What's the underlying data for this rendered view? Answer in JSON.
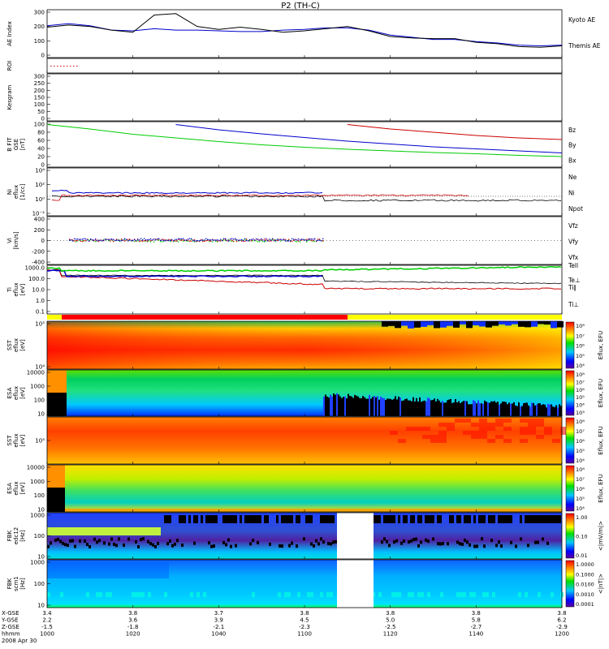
{
  "title": "P2 (TH-C)",
  "colors": {
    "blue": "#0000cc",
    "green": "#00cc00",
    "red": "#cc0000",
    "black": "#000000"
  },
  "footer": {
    "rows": [
      {
        "label": "X-GSE",
        "values": [
          "3.4",
          "3.8",
          "3.7",
          "3.8",
          "3.8",
          "3.8",
          "3.8"
        ]
      },
      {
        "label": "Y-GSE",
        "values": [
          "2.2",
          "3.6",
          "3.9",
          "4.5",
          "5.0",
          "5.8",
          "6.2"
        ]
      },
      {
        "label": "Z-GSE",
        "values": [
          "-1.5",
          "-1.8",
          "-2.1",
          "-2.3",
          "-2.5",
          "-2.7",
          "-2.9"
        ]
      },
      {
        "label": "hhmm",
        "values": [
          "1000",
          "1020",
          "1040",
          "1100",
          "1120",
          "1140",
          "1200"
        ]
      }
    ],
    "date": "2008 Apr 30"
  },
  "chart_data": [
    {
      "type": "line",
      "ylabel": "AE Index",
      "ylim": [
        0,
        300
      ],
      "yticks": [
        "300",
        "200",
        "100",
        "0"
      ],
      "x_hhmm": [
        1000,
        1005,
        1010,
        1015,
        1020,
        1025,
        1030,
        1035,
        1040,
        1045,
        1050,
        1055,
        1100,
        1105,
        1110,
        1115,
        1120,
        1125,
        1130,
        1135,
        1140,
        1145,
        1150,
        1155,
        1200
      ],
      "series": [
        {
          "name": "Kyoto AE",
          "color": "#0000cc",
          "values": [
            205,
            220,
            205,
            175,
            170,
            185,
            175,
            175,
            170,
            165,
            165,
            175,
            180,
            190,
            190,
            175,
            140,
            125,
            110,
            110,
            95,
            85,
            70,
            65,
            70
          ]
        },
        {
          "name": "Themis AE",
          "color": "#000000",
          "values": [
            195,
            210,
            200,
            175,
            160,
            280,
            290,
            200,
            180,
            195,
            180,
            160,
            170,
            185,
            200,
            170,
            130,
            120,
            115,
            115,
            90,
            80,
            60,
            55,
            65
          ]
        }
      ]
    },
    {
      "type": "line",
      "ylabel": "ROI",
      "note": "red dots at start only"
    },
    {
      "type": "line",
      "ylabel": "Kesgram",
      "ylim": [
        0,
        300
      ],
      "yticks": [
        "300",
        "250",
        "200",
        "150",
        "100",
        "50",
        "0"
      ]
    },
    {
      "type": "line",
      "ylabel": "B FIT GSE [nT]",
      "ylim": [
        0,
        100
      ],
      "yticks": [
        "100",
        "80",
        "60",
        "40",
        "20",
        "0"
      ],
      "x_hhmm": [
        1000,
        1010,
        1020,
        1030,
        1040,
        1050,
        1100,
        1110,
        1120,
        1130,
        1140,
        1150,
        1200
      ],
      "series": [
        {
          "name": "Bz",
          "color": "#cc0000",
          "values": [
            null,
            null,
            null,
            null,
            null,
            null,
            null,
            99,
            88,
            80,
            72,
            66,
            62
          ]
        },
        {
          "name": "By",
          "color": "#00cc00",
          "values": [
            99,
            88,
            75,
            66,
            57,
            49,
            43,
            38,
            34,
            30,
            27,
            23,
            20
          ]
        },
        {
          "name": "Bx",
          "color": "#0000cc",
          "values": [
            null,
            null,
            null,
            99,
            86,
            76,
            67,
            58,
            51,
            44,
            39,
            34,
            29
          ]
        }
      ]
    },
    {
      "type": "line",
      "ylabel": "Ni eflux [1/cc]",
      "yticks": [
        "10⁴",
        "10²",
        "10⁰",
        "10⁻²"
      ],
      "series": [
        {
          "name": "Ne",
          "color": "#cc0000"
        },
        {
          "name": "Ni",
          "color": "#000000"
        },
        {
          "name": "Npot",
          "color": "#0000cc"
        }
      ]
    },
    {
      "type": "scatter",
      "ylabel": "Vi [km/s]",
      "ylim": [
        -400,
        400
      ],
      "yticks": [
        "400",
        "200",
        "0",
        "-200",
        "-400"
      ],
      "series": [
        {
          "name": "Vfz",
          "color": "#cc0000"
        },
        {
          "name": "Vfy",
          "color": "#00cc00"
        },
        {
          "name": "Vfx",
          "color": "#0000cc"
        }
      ]
    },
    {
      "type": "line",
      "ylabel": "Ti eflux [eV]",
      "yticks": [
        "1000.0",
        "100.0",
        "10.0",
        "1.0",
        "0.1"
      ],
      "series": [
        {
          "name": "Tell",
          "color": "#000000"
        },
        {
          "name": "Te⊥",
          "color": "#cc0000"
        },
        {
          "name": "Ti∥",
          "color": "#00cc00"
        },
        {
          "name": "Ti⊥",
          "color": "#0000cc"
        }
      ]
    },
    {
      "type": "heatmap",
      "ylabel": "SST eflux [eV]",
      "yticks": [
        "10⁵",
        "10⁴"
      ],
      "colorbar": "Eflux, EFU",
      "cbticks": [
        "10⁸",
        "10⁷",
        "10⁶",
        "10⁵",
        "10⁴"
      ]
    },
    {
      "type": "heatmap",
      "ylabel": "ESA eflux [eV]",
      "yticks": [
        "10000",
        "1000",
        "100",
        "10"
      ],
      "colorbar": "Eflux, EFU",
      "cbticks": [
        "10⁸",
        "10⁷",
        "10⁶",
        "10⁵",
        "10⁴",
        "10³"
      ]
    },
    {
      "type": "heatmap",
      "ylabel": "SST eflux [eV]",
      "yticks": [
        "10⁵"
      ],
      "colorbar": "Eflux, EFU",
      "cbticks": [
        "10⁸",
        "10⁷",
        "10⁶",
        "10⁵",
        "10⁴"
      ]
    },
    {
      "type": "heatmap",
      "ylabel": "ESA eflux [eV]",
      "yticks": [
        "10000",
        "1000",
        "100",
        "10"
      ],
      "colorbar": "Eflux, EFU",
      "cbticks": [
        "10⁸",
        "10⁷",
        "10⁶",
        "10⁵",
        "10⁴"
      ]
    },
    {
      "type": "heatmap",
      "ylabel": "FBK edc12 [Hz]",
      "yticks": [
        "1000",
        "100",
        "10"
      ],
      "colorbar": "<|mV/m|>",
      "cbticks": [
        "1.00",
        "0.10",
        "0.01"
      ]
    },
    {
      "type": "heatmap",
      "ylabel": "FBK scm1 [Hz]",
      "yticks": [
        "1000",
        "100",
        "10"
      ],
      "colorbar": "<|nT|>",
      "cbticks": [
        "1.0000",
        "0.1000",
        "0.0100",
        "0.0010",
        "0.0001"
      ]
    }
  ]
}
